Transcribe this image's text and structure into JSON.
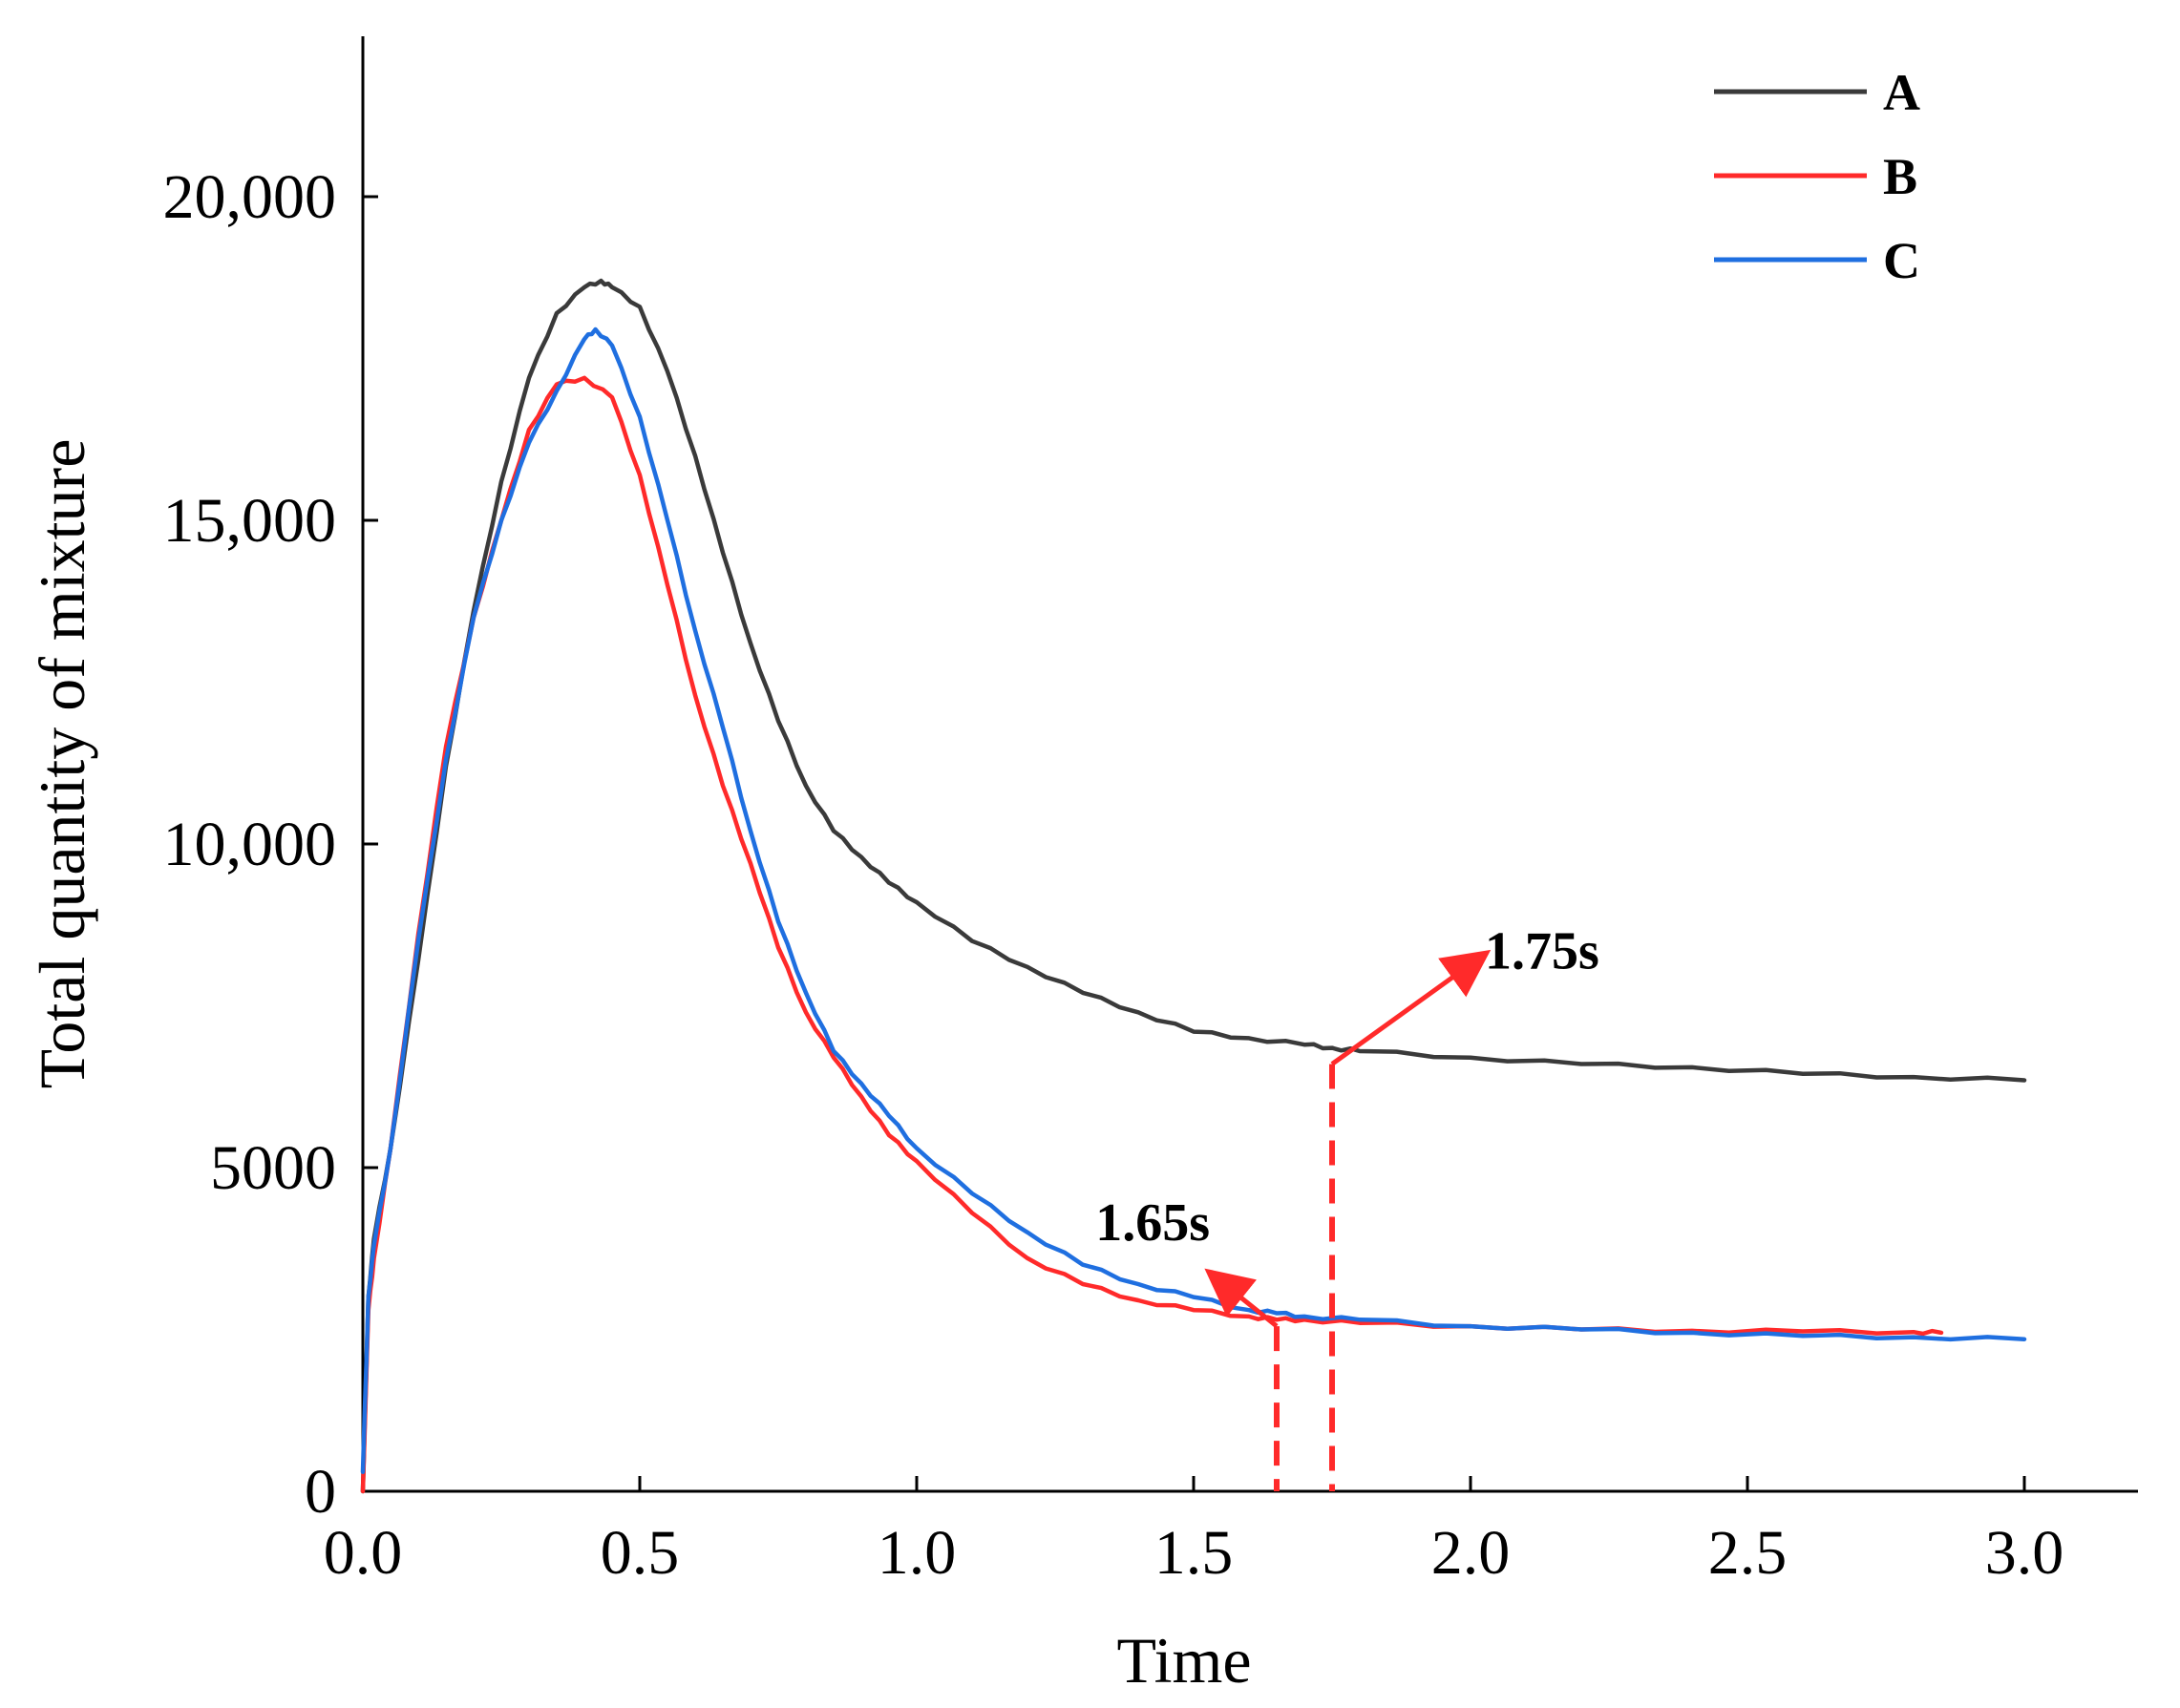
{
  "chart_data": {
    "type": "line",
    "title": "",
    "xlabel": "Time",
    "ylabel": "Total quantity of mixture",
    "xlim": [
      0,
      3.2
    ],
    "ylim": [
      0,
      23000
    ],
    "xticks": [
      0.0,
      0.5,
      1.0,
      1.5,
      2.0,
      2.5,
      3.0
    ],
    "xtick_labels": [
      "0.0",
      "0.5",
      "1.0",
      "1.5",
      "2.0",
      "2.5",
      "3.0"
    ],
    "yticks": [
      0,
      5000,
      10000,
      15000,
      20000
    ],
    "ytick_labels": [
      "0",
      "5000",
      "10,000",
      "15,000",
      "20,000"
    ],
    "legend_position": "top-right",
    "series": [
      {
        "name": "A",
        "color": "#3a3a3a",
        "x": [
          0.0,
          0.01,
          0.02,
          0.05,
          0.1,
          0.15,
          0.2,
          0.25,
          0.3,
          0.35,
          0.4,
          0.43,
          0.45,
          0.5,
          0.55,
          0.6,
          0.65,
          0.7,
          0.75,
          0.8,
          0.85,
          0.9,
          0.95,
          1.0,
          1.1,
          1.2,
          1.3,
          1.4,
          1.5,
          1.6,
          1.7,
          1.75,
          1.8,
          2.0,
          2.2,
          2.4,
          2.6,
          2.8,
          3.0
        ],
        "y": [
          0,
          3000,
          3900,
          5300,
          8200,
          11200,
          13600,
          15600,
          17200,
          18200,
          18600,
          18700,
          18600,
          18300,
          17300,
          16000,
          14500,
          13100,
          11900,
          10900,
          10200,
          9800,
          9400,
          9100,
          8500,
          8100,
          7700,
          7400,
          7100,
          7000,
          6900,
          6850,
          6800,
          6700,
          6600,
          6550,
          6450,
          6400,
          6350
        ]
      },
      {
        "name": "B",
        "color": "#ff2a2a",
        "x": [
          0.0,
          0.01,
          0.02,
          0.05,
          0.1,
          0.15,
          0.2,
          0.25,
          0.3,
          0.35,
          0.4,
          0.45,
          0.5,
          0.55,
          0.6,
          0.65,
          0.7,
          0.75,
          0.8,
          0.85,
          0.9,
          0.95,
          1.0,
          1.1,
          1.2,
          1.3,
          1.4,
          1.5,
          1.6,
          1.65,
          1.7,
          1.8,
          2.0,
          2.2,
          2.4,
          2.6,
          2.8,
          2.85
        ],
        "y": [
          0,
          2800,
          3600,
          5300,
          8600,
          11500,
          13500,
          15000,
          16400,
          17100,
          17200,
          16900,
          15700,
          14000,
          12300,
          10900,
          9700,
          8400,
          7400,
          6700,
          6100,
          5500,
          5100,
          4300,
          3600,
          3200,
          2950,
          2800,
          2700,
          2650,
          2650,
          2600,
          2550,
          2500,
          2480,
          2470,
          2460,
          2450
        ]
      },
      {
        "name": "C",
        "color": "#1f6fe0",
        "x": [
          0.0,
          0.01,
          0.02,
          0.05,
          0.1,
          0.15,
          0.2,
          0.25,
          0.3,
          0.35,
          0.4,
          0.42,
          0.45,
          0.5,
          0.55,
          0.6,
          0.65,
          0.7,
          0.75,
          0.8,
          0.85,
          0.9,
          0.95,
          1.0,
          1.1,
          1.2,
          1.3,
          1.4,
          1.5,
          1.6,
          1.65,
          1.7,
          1.8,
          2.0,
          2.2,
          2.4,
          2.6,
          2.8,
          3.0
        ],
        "y": [
          300,
          3000,
          3800,
          5300,
          8500,
          11300,
          13500,
          15000,
          16200,
          17000,
          17800,
          17950,
          17700,
          16600,
          15000,
          13300,
          11800,
          10200,
          8800,
          7700,
          6800,
          6300,
          5800,
          5300,
          4600,
          4000,
          3500,
          3200,
          3000,
          2800,
          2750,
          2700,
          2650,
          2550,
          2500,
          2450,
          2400,
          2380,
          2350
        ]
      }
    ],
    "annotations": [
      {
        "text": "1.65s",
        "x": 1.65,
        "color": "#ff2a2a"
      },
      {
        "text": "1.75s",
        "x": 1.75,
        "color": "#ff2a2a"
      }
    ]
  }
}
